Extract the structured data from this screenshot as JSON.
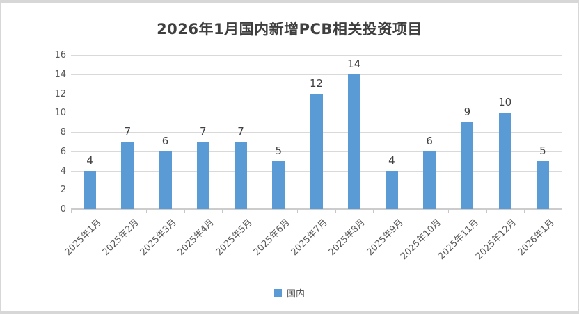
{
  "chart_data": {
    "type": "bar",
    "title": "2026年1月国内新增PCB相关投资项目",
    "categories": [
      "2025年1月",
      "2025年2月",
      "2025年3月",
      "2025年4月",
      "2025年5月",
      "2025年6月",
      "2025年7月",
      "2025年8月",
      "2025年9月",
      "2025年10月",
      "2025年11月",
      "2025年12月",
      "2026年1月"
    ],
    "series": [
      {
        "name": "国内",
        "values": [
          4,
          7,
          6,
          7,
          7,
          5,
          12,
          14,
          4,
          6,
          9,
          10,
          5
        ],
        "color": "#5b9bd5"
      }
    ],
    "xlabel": "",
    "ylabel": "",
    "ylim": [
      0,
      16
    ],
    "yticks": [
      0,
      2,
      4,
      6,
      8,
      10,
      12,
      14,
      16
    ],
    "grid": true,
    "data_labels": true,
    "legend_position": "bottom"
  },
  "legend": {
    "items": [
      {
        "label": "国内",
        "color": "#5b9bd5"
      }
    ]
  },
  "colors": {
    "bar": "#5b9bd5",
    "title_text": "#3f3f3f",
    "axis_text": "#595959",
    "gridline": "#d9d9d9",
    "border": "#d7d7d7",
    "background": "#ffffff"
  }
}
